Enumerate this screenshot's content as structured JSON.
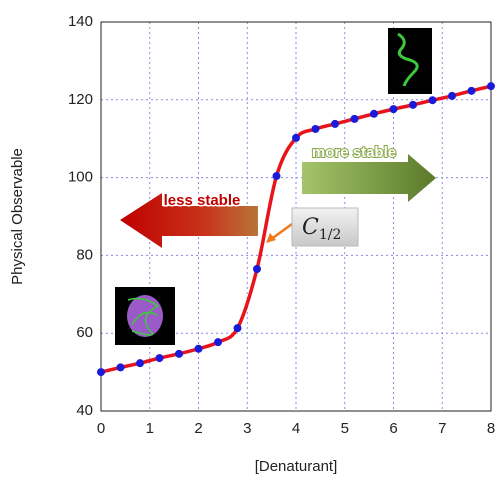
{
  "chart_data": {
    "type": "line",
    "x_label": "[Denaturant]",
    "y_label": "Physical Observable",
    "x": [
      0,
      0.4,
      0.8,
      1.2,
      1.6,
      2.0,
      2.4,
      2.8,
      3.2,
      3.6,
      4.0,
      4.4,
      4.8,
      5.2,
      5.6,
      6.0,
      6.4,
      6.8,
      7.2,
      7.6,
      8.0
    ],
    "series": [
      {
        "color": "#e8141b",
        "marker_color": "#1a1adb",
        "values": [
          50,
          51.2,
          52.3,
          53.6,
          54.7,
          56,
          57.7,
          61.3,
          76.5,
          100.4,
          110.2,
          112.5,
          113.8,
          115.1,
          116.4,
          117.6,
          118.7,
          119.9,
          121,
          122.3,
          123.5
        ]
      }
    ],
    "xlim": [
      0,
      8
    ],
    "xticks": [
      0,
      1,
      2,
      3,
      4,
      5,
      6,
      7,
      8
    ],
    "ylim": [
      40,
      140
    ],
    "yticks": [
      40,
      60,
      80,
      100,
      120,
      140
    ],
    "grid": true,
    "annotations": {
      "less_stable": "less stable",
      "more_stable": "more stable",
      "midpoint_symbol": "C",
      "midpoint_subscript": "1/2"
    }
  }
}
